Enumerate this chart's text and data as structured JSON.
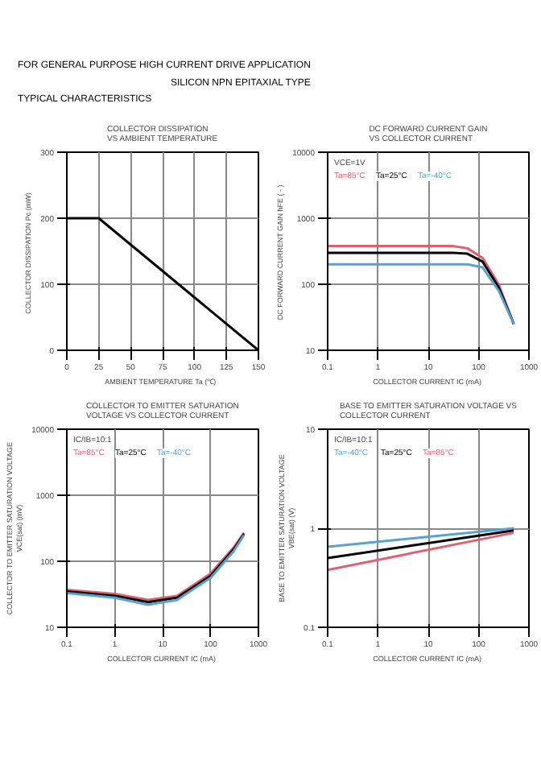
{
  "chart_data": [
    {
      "type": "line",
      "title": "COLLECTOR DISSIPATION\nVS AMBIENT TEMPERATURE",
      "xlabel": "AMBIENT TEMPERATURE  Ta  (℃)",
      "ylabel": "COLLECTOR DISSIPATION  Pc  (mW)",
      "x": [
        0,
        25,
        150
      ],
      "series": [
        {
          "color": "#000000",
          "values": [
            200,
            200,
            0
          ]
        }
      ],
      "xlim": [
        0,
        150
      ],
      "xticks": [
        0,
        25,
        50,
        75,
        100,
        125,
        150
      ],
      "ylim": [
        0,
        300
      ],
      "yticks": [
        0,
        100,
        200,
        300
      ],
      "grid": true,
      "annotations": [
        "FOR GENERAL PURPOSE HIGH CURRENT DRIVE APPLICATION",
        "SILICON NPN EPITAXIAL TYPE",
        "TYPICAL CHARACTERISTICS"
      ]
    },
    {
      "type": "line",
      "title": "DC FORWARD CURRENT GAIN\nVS COLLECTOR CURRENT",
      "xlabel": "COLLECTOR CURRENT  IC (mA)",
      "ylabel": "DC FORWARD CURRENT GAIN  hFE ( - )",
      "log": "xy",
      "x": [
        0.1,
        1,
        10,
        30,
        60,
        120,
        250,
        500
      ],
      "series": [
        {
          "name": "Ta=85°C",
          "color": "#e06070",
          "values": [
            380,
            380,
            380,
            380,
            350,
            250,
            100,
            25
          ]
        },
        {
          "name": "Ta=25°C",
          "color": "#000000",
          "values": [
            300,
            300,
            300,
            300,
            290,
            220,
            90,
            25
          ]
        },
        {
          "name": "Ta=-40°C",
          "color": "#5aa0d0",
          "values": [
            200,
            200,
            200,
            200,
            200,
            180,
            80,
            25
          ]
        }
      ],
      "xlim": [
        0.1,
        1000
      ],
      "xticks": [
        0.1,
        1,
        10,
        100,
        1000
      ],
      "ylim": [
        10,
        10000
      ],
      "yticks": [
        10,
        100,
        1000,
        10000
      ],
      "grid": true,
      "annotations": [
        "VCE=1V"
      ]
    },
    {
      "type": "line",
      "title": "COLLECTOR TO EMITTER SATURATION\nVOLTAGE VS COLLECTOR CURRENT",
      "xlabel": "COLLECTOR CURRENT  IC (mA)",
      "ylabel": "COLLECTOR TO EMITTER SATURATION VOLTAGE\nVCE(sat) (mV)",
      "log": "xy",
      "x": [
        0.1,
        1,
        5,
        20,
        100,
        300,
        500
      ],
      "series": [
        {
          "name": "Ta=85°C",
          "color": "#e06070",
          "values": [
            37,
            32,
            26,
            30,
            65,
            160,
            270
          ]
        },
        {
          "name": "Ta=25°C",
          "color": "#000000",
          "values": [
            35,
            30,
            24,
            28,
            60,
            150,
            260
          ]
        },
        {
          "name": "Ta=-40°C",
          "color": "#5aa0d0",
          "values": [
            33,
            28,
            22,
            26,
            56,
            140,
            250
          ]
        }
      ],
      "xlim": [
        0.1,
        1000
      ],
      "xticks": [
        0.1,
        1,
        10,
        100,
        1000
      ],
      "ylim": [
        10,
        10000
      ],
      "yticks": [
        10,
        100,
        1000,
        10000
      ],
      "grid": true,
      "annotations": [
        "IC/IB=10:1"
      ]
    },
    {
      "type": "line",
      "title": "BASE TO EMITTER SATURATION VOLTAGE VS\nCOLLECTOR CURRENT",
      "xlabel": "COLLECTOR CURRENT  IC (mA)",
      "ylabel": "BASE TO EMITTER SATURATION VOLTAGE\nVBE(sat) (V)",
      "log": "xy",
      "x": [
        0.1,
        500
      ],
      "series": [
        {
          "name": "Ta=-40°C",
          "color": "#5aa0d0",
          "values": [
            0.65,
            1.0
          ]
        },
        {
          "name": "Ta=25°C",
          "color": "#000000",
          "values": [
            0.5,
            0.95
          ]
        },
        {
          "name": "Ta=85°C",
          "color": "#e06070",
          "values": [
            0.38,
            0.9
          ]
        }
      ],
      "xlim": [
        0.1,
        1000
      ],
      "xticks": [
        0.1,
        1,
        10,
        100,
        1000
      ],
      "ylim": [
        0.1,
        10
      ],
      "yticks": [
        0.1,
        1,
        10
      ],
      "grid": true,
      "annotations": [
        "IC/IB=10:1"
      ]
    }
  ]
}
